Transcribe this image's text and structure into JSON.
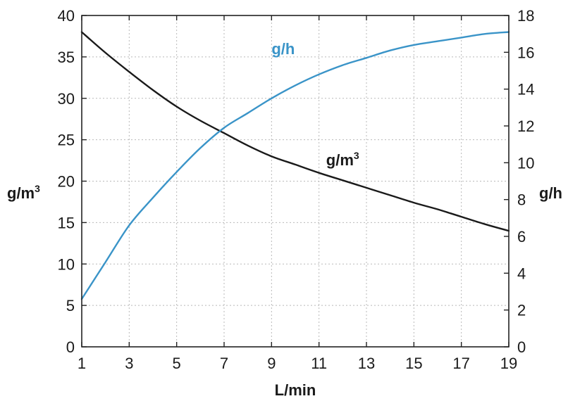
{
  "chart_data": {
    "type": "line",
    "xlabel": "L/min",
    "ylabel_left": {
      "base": "g/m",
      "sup": "3"
    },
    "ylabel_right": "g/h",
    "xlim": [
      1,
      19
    ],
    "ylim_left": [
      0,
      40
    ],
    "ylim_right": [
      0,
      18
    ],
    "x_ticks": [
      "1",
      "3",
      "5",
      "7",
      "9",
      "11",
      "13",
      "15",
      "17",
      "19"
    ],
    "y_left_ticks": [
      "0",
      "5",
      "10",
      "15",
      "20",
      "25",
      "30",
      "35",
      "40"
    ],
    "y_right_ticks": [
      "0",
      "2",
      "4",
      "6",
      "8",
      "10",
      "12",
      "14",
      "16",
      "18"
    ],
    "grid": true,
    "series": [
      {
        "name": "g/m3",
        "label": {
          "base": "g/m",
          "sup": "3"
        },
        "axis": "left",
        "color": "#1a1a1a",
        "x": [
          1,
          2,
          3,
          4,
          5,
          6,
          7,
          8,
          9,
          10,
          11,
          12,
          13,
          14,
          15,
          16,
          17,
          18,
          19
        ],
        "y": [
          38.0,
          35.5,
          33.2,
          31.0,
          29.0,
          27.3,
          25.8,
          24.3,
          23.0,
          22.0,
          21.0,
          20.1,
          19.2,
          18.3,
          17.4,
          16.6,
          15.7,
          14.8,
          14.0
        ]
      },
      {
        "name": "g/h",
        "label": {
          "base": "g/h",
          "sup": ""
        },
        "axis": "right",
        "color": "#3a94c8",
        "x": [
          1,
          2,
          3,
          4,
          5,
          6,
          7,
          8,
          9,
          10,
          11,
          12,
          13,
          14,
          15,
          16,
          17,
          18,
          19
        ],
        "y": [
          2.6,
          4.6,
          6.6,
          8.1,
          9.5,
          10.8,
          11.9,
          12.7,
          13.5,
          14.2,
          14.8,
          15.3,
          15.7,
          16.1,
          16.4,
          16.6,
          16.8,
          17.0,
          17.1
        ]
      }
    ]
  }
}
